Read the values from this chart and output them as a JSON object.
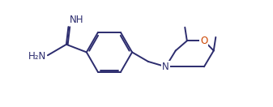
{
  "background_color": "#ffffff",
  "bond_color": "#2c2c6e",
  "atom_color_N": "#2c2c6e",
  "atom_color_O": "#cc4400",
  "line_width": 1.4,
  "font_size": 8.5,
  "fig_width": 3.37,
  "fig_height": 1.32,
  "dpi": 100,
  "xlim": [
    0,
    10.5
  ],
  "ylim": [
    0,
    4.0
  ]
}
